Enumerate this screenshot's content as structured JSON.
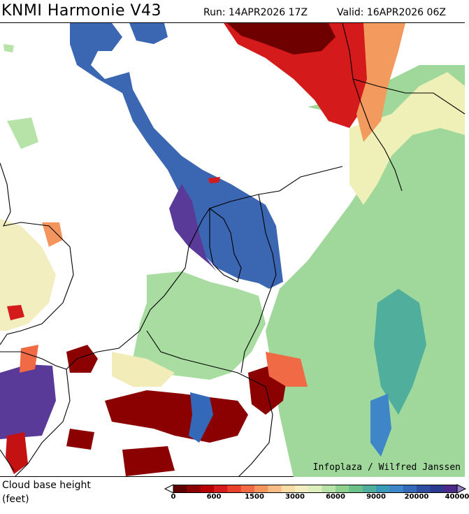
{
  "header": {
    "title": "KNMI Harmonie V43",
    "run": "Run: 14APR2026 17Z",
    "valid": "Valid: 16APR2026 06Z"
  },
  "map": {
    "credit": "Infoplaza / Wilfred Janssen"
  },
  "legend": {
    "variable": "Cloud base height",
    "unit": "(feet)",
    "colors": [
      "#5e0000",
      "#8b0000",
      "#b80000",
      "#d41a1a",
      "#e8402a",
      "#f06a45",
      "#f5955e",
      "#f7bb86",
      "#f7dca4",
      "#f2eec0",
      "#dcefbc",
      "#b7e2a8",
      "#8fd18f",
      "#6cc18a",
      "#4fae9c",
      "#3a9bb8",
      "#3f86c9",
      "#3369b8",
      "#2d4ea0",
      "#2b3a8f",
      "#4b2a8a",
      "#6a4aa8",
      "#9080c0"
    ],
    "labels": [
      "0",
      "600",
      "1500",
      "3000",
      "6000",
      "9000",
      "20000",
      "40000"
    ],
    "label_color_index": [
      0,
      3,
      6,
      9,
      12,
      15,
      18,
      21
    ]
  }
}
